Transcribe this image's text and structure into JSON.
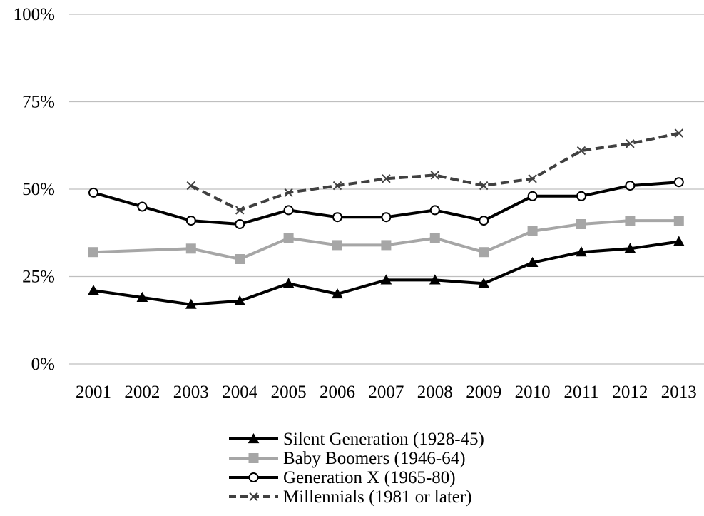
{
  "chart_data": {
    "type": "line",
    "title": "",
    "xlabel": "",
    "ylabel": "",
    "x": [
      "2001",
      "2002",
      "2003",
      "2004",
      "2005",
      "2006",
      "2007",
      "2008",
      "2009",
      "2010",
      "2011",
      "2012",
      "2013"
    ],
    "ylim": [
      0,
      100
    ],
    "y_ticks": [
      "0%",
      "25%",
      "50%",
      "75%",
      "100%"
    ],
    "grid": true,
    "legend_position": "bottom-center",
    "series": [
      {
        "name": "Silent Generation (1928-45)",
        "marker": "triangle",
        "line_style": "solid",
        "color": "#000000",
        "values": [
          21,
          19,
          17,
          18,
          23,
          20,
          24,
          24,
          23,
          29,
          32,
          33,
          35
        ]
      },
      {
        "name": "Baby Boomers (1946-64)",
        "marker": "square",
        "line_style": "solid",
        "color": "#a6a6a6",
        "values": [
          32,
          null,
          33,
          30,
          36,
          34,
          34,
          36,
          32,
          38,
          40,
          41,
          41
        ]
      },
      {
        "name": "Generation X (1965-80)",
        "marker": "circle-open",
        "line_style": "solid",
        "color": "#000000",
        "values": [
          49,
          45,
          41,
          40,
          44,
          42,
          42,
          44,
          41,
          48,
          48,
          51,
          52
        ]
      },
      {
        "name": "Millennials (1981 or later)",
        "marker": "x",
        "line_style": "dashed",
        "color": "#404040",
        "values": [
          null,
          null,
          51,
          44,
          49,
          51,
          53,
          54,
          51,
          53,
          61,
          63,
          66
        ]
      }
    ]
  }
}
